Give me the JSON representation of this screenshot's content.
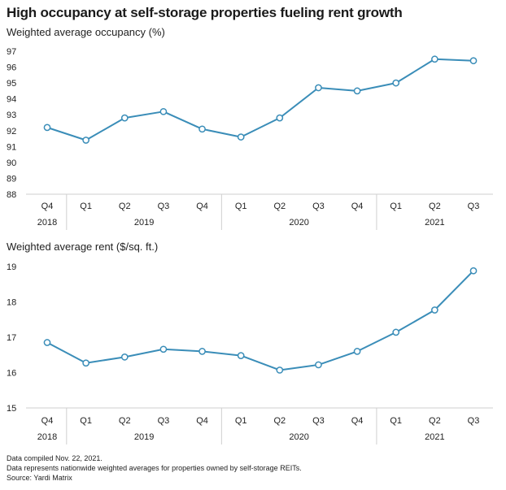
{
  "title": "High occupancy at self-storage properties fueling rent growth",
  "notes": [
    "Data compiled Nov. 22, 2021.",
    "Data represents nationwide weighted averages for properties owned by self-storage REITs.",
    "Source: Yardi Matrix"
  ],
  "colors": {
    "line": "#3a8db8",
    "marker_fill": "#ffffff",
    "grid": "#cfcfcf"
  },
  "chart_data": [
    {
      "type": "line",
      "title": "Weighted average occupancy (%)",
      "categories": [
        "Q4",
        "Q1",
        "Q2",
        "Q3",
        "Q4",
        "Q1",
        "Q2",
        "Q3",
        "Q4",
        "Q1",
        "Q2",
        "Q3"
      ],
      "years": [
        {
          "label": "2018",
          "span": 1
        },
        {
          "label": "2019",
          "span": 4
        },
        {
          "label": "2020",
          "span": 4
        },
        {
          "label": "2021",
          "span": 3
        }
      ],
      "values": [
        92.2,
        91.4,
        92.8,
        93.2,
        92.1,
        91.6,
        92.8,
        94.7,
        94.5,
        95.0,
        96.5,
        96.4
      ],
      "ylim": [
        88,
        97
      ],
      "yticks": [
        88,
        89,
        90,
        91,
        92,
        93,
        94,
        95,
        96,
        97
      ],
      "grid": "horizontal gridline at baseline only"
    },
    {
      "type": "line",
      "title": "Weighted average rent ($/sq. ft.)",
      "categories": [
        "Q4",
        "Q1",
        "Q2",
        "Q3",
        "Q4",
        "Q1",
        "Q2",
        "Q3",
        "Q4",
        "Q1",
        "Q2",
        "Q3"
      ],
      "years": [
        {
          "label": "2018",
          "span": 1
        },
        {
          "label": "2019",
          "span": 4
        },
        {
          "label": "2020",
          "span": 4
        },
        {
          "label": "2021",
          "span": 3
        }
      ],
      "values": [
        16.85,
        16.27,
        16.44,
        16.66,
        16.6,
        16.48,
        16.07,
        16.22,
        16.6,
        17.14,
        17.77,
        18.88
      ],
      "ylim": [
        15,
        19
      ],
      "yticks": [
        15,
        16,
        17,
        18,
        19
      ],
      "grid": "horizontal gridline at baseline only"
    }
  ]
}
